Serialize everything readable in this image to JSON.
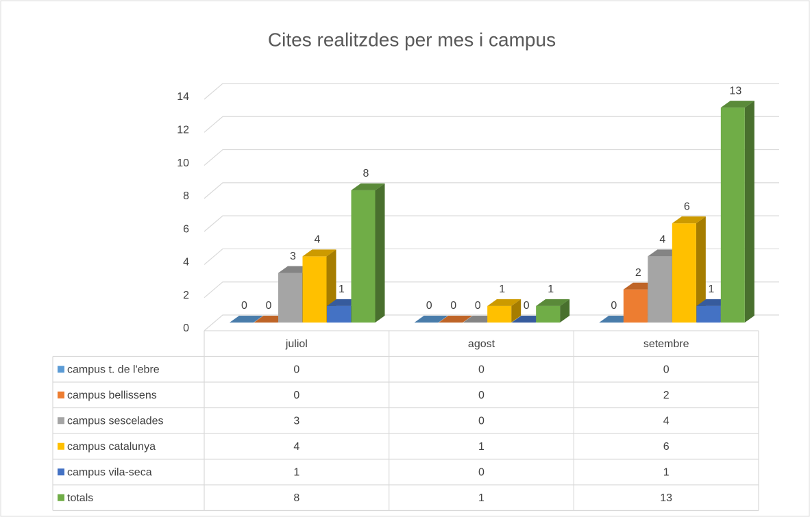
{
  "chart_data": {
    "type": "bar3d",
    "title": "Cites realitzdes per mes i campus",
    "categories": [
      "juliol",
      "agost",
      "setembre"
    ],
    "series": [
      {
        "name": "campus t. de l'ebre",
        "color": "#5b9bd5",
        "values": [
          0,
          0,
          0
        ]
      },
      {
        "name": "campus bellissens",
        "color": "#ed7d31",
        "values": [
          0,
          0,
          2
        ]
      },
      {
        "name": "campus sescelades",
        "color": "#a5a5a5",
        "values": [
          3,
          0,
          4
        ]
      },
      {
        "name": "campus catalunya",
        "color": "#ffc000",
        "values": [
          4,
          1,
          6
        ]
      },
      {
        "name": "campus vila-seca",
        "color": "#4472c4",
        "values": [
          1,
          0,
          1
        ]
      },
      {
        "name": "totals",
        "color": "#70ad47",
        "values": [
          8,
          1,
          13
        ]
      }
    ],
    "ylim": [
      0,
      14
    ],
    "yticks": [
      0,
      2,
      4,
      6,
      8,
      10,
      12,
      14
    ],
    "grid": true,
    "data_table": true
  }
}
